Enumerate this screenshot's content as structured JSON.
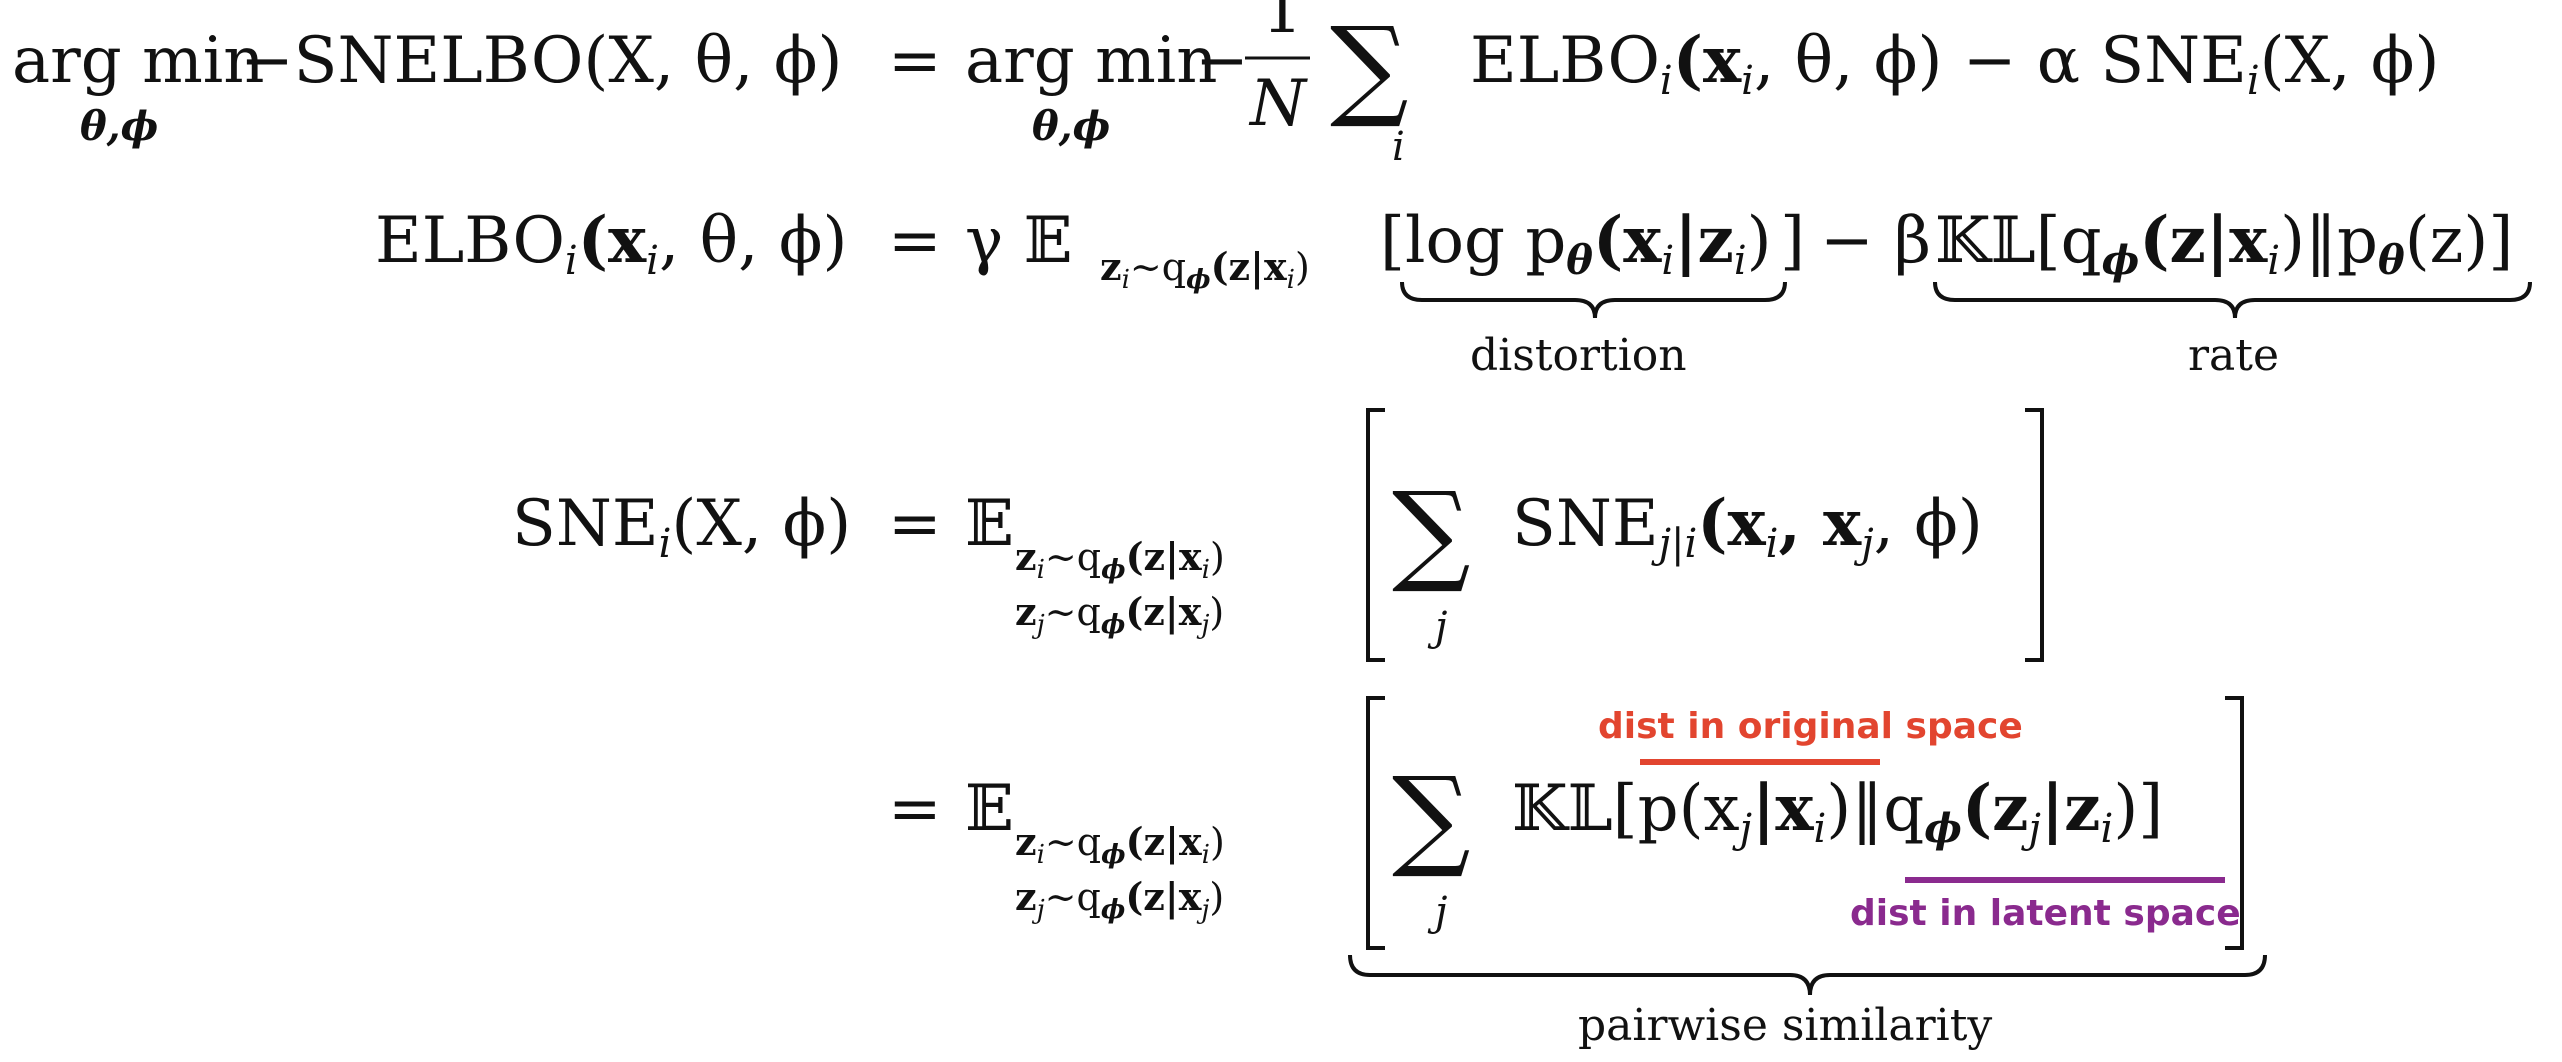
{
  "equations": {
    "row1": {
      "argmin": "arg min",
      "sub": "θ,ϕ",
      "lhs": "−SNELBO(X, θ, ϕ)",
      "eq": "=",
      "rhs_argmin": "arg min",
      "rhs_sub": "θ,ϕ",
      "minus": "−",
      "frac_num": "1",
      "frac_den": "N",
      "sum": "∑",
      "sum_sub": "i",
      "rhs_terms": "ELBO",
      "rhs_terms_sub": "i",
      "rhs_terms_args": "(x",
      "rhs_terms_rest": ", θ, ϕ) − α SNE",
      "rhs_terms_sub2": "i",
      "rhs_terms_tail": "(X, ϕ)"
    },
    "row2": {
      "lhs": "ELBO",
      "lhs_sub": "i",
      "lhs_args": "(x",
      "lhs_args_sub": "i",
      "lhs_tail": ", θ, ϕ)",
      "eq": "=",
      "gamma_E": "γ 𝔼",
      "E_sub": "z",
      "E_sub_rest": "∼q",
      "E_sub_tail": "(z|x",
      "E_sub_close": ")",
      "bracket_open": "[",
      "distortion_term": "log p",
      "distortion_mid": "(x",
      "distortion_tail": "|z",
      "distortion_close": ")",
      "bracket_close": "]",
      "minus_beta": "− β",
      "rate_term": "𝕂𝕃[q",
      "rate_mid": "(z|x",
      "rate_mid2": ")‖p",
      "rate_tail": "(z)]",
      "distortion_label": "distortion",
      "rate_label": "rate"
    },
    "row3": {
      "lhs": "SNE",
      "lhs_sub": "i",
      "lhs_tail": "(X, ϕ)",
      "eq": "=",
      "E": "𝔼",
      "sub_line1": "z",
      "sub_line1_tail": "∼q",
      "sub_line1_end": "(z|x",
      "sub_line2": "z",
      "sub_line2_tail": "∼q",
      "sub_line2_end": "(z|x",
      "sum": "∑",
      "sum_sub": "j",
      "term": "SNE",
      "term_sub": "j|i",
      "term_args": "(x",
      "term_args_tail": ", ϕ)"
    },
    "row4": {
      "eq": "=",
      "E": "𝔼",
      "sum": "∑",
      "sum_sub": "j",
      "kl": "𝕂𝕃[p(x",
      "kl_mid": "|x",
      "kl_mid2": ")‖q",
      "kl_tail": "(z",
      "kl_tail2": "|z",
      "kl_close": ")]",
      "orig_label": "dist in original space",
      "latent_label": "dist in latent space",
      "pairwise_label": "pairwise similarity"
    }
  },
  "colors": {
    "ink": "#111111",
    "original": "#e2452f",
    "latent": "#8a2a8e"
  }
}
